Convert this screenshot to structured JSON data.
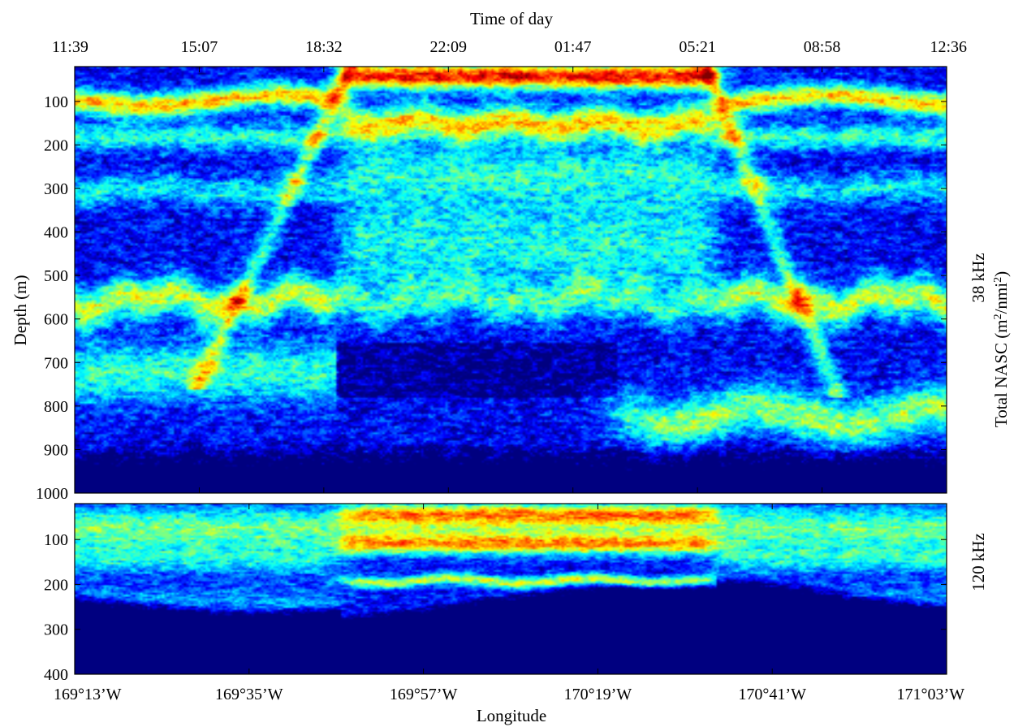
{
  "chart_data": {
    "type": "heatmap",
    "title": "",
    "top_axis": {
      "label": "Time of day",
      "ticks": [
        "11:39",
        "15:07",
        "18:32",
        "22:09",
        "01:47",
        "05:21",
        "08:58",
        "12:36"
      ]
    },
    "bottom_axis": {
      "label": "Longitude",
      "ticks": [
        "169°13’W",
        "169°35’W",
        "169°57’W",
        "170°19’W",
        "170°41’W",
        "171°03’W"
      ]
    },
    "ylabel": "Depth (m)",
    "colorbar_label": "Total NASC (m²/nmi²)",
    "colorbar_label_parts": {
      "text": "Total NASC (m",
      "sup1": "2",
      "mid": "/nmi",
      "sup2": "2",
      "end": ")"
    },
    "colormap": "jet",
    "panels": [
      {
        "name": "38 kHz",
        "depth_range": [
          20,
          1000
        ],
        "y_ticks": [
          100,
          200,
          300,
          400,
          500,
          600,
          700,
          800,
          900,
          1000
        ],
        "layers": [
          {
            "type": "daytime_surface",
            "depth": 90,
            "intensity": 0.68
          },
          {
            "type": "night_surface",
            "depth": 40,
            "intensity": 0.95
          },
          {
            "type": "night_layer",
            "depth": 150,
            "intensity": 0.72
          },
          {
            "type": "day_deep_scattering_layer",
            "depth": 550,
            "intensity": 0.62
          },
          {
            "type": "deep_layer_east",
            "depth": 830,
            "intensity": 0.48
          }
        ]
      },
      {
        "name": "120 kHz",
        "depth_range": [
          20,
          400
        ],
        "y_ticks": [
          100,
          200,
          300,
          400
        ],
        "layers": [
          {
            "type": "surface",
            "depth": 60,
            "intensity": 0.55
          },
          {
            "type": "night_layer",
            "depth": 110,
            "intensity": 0.72
          },
          {
            "type": "thin_layer",
            "depth": 190,
            "intensity": 0.78
          }
        ]
      }
    ],
    "colors": {
      "background": "#ffffff",
      "frame": "#000000"
    }
  }
}
